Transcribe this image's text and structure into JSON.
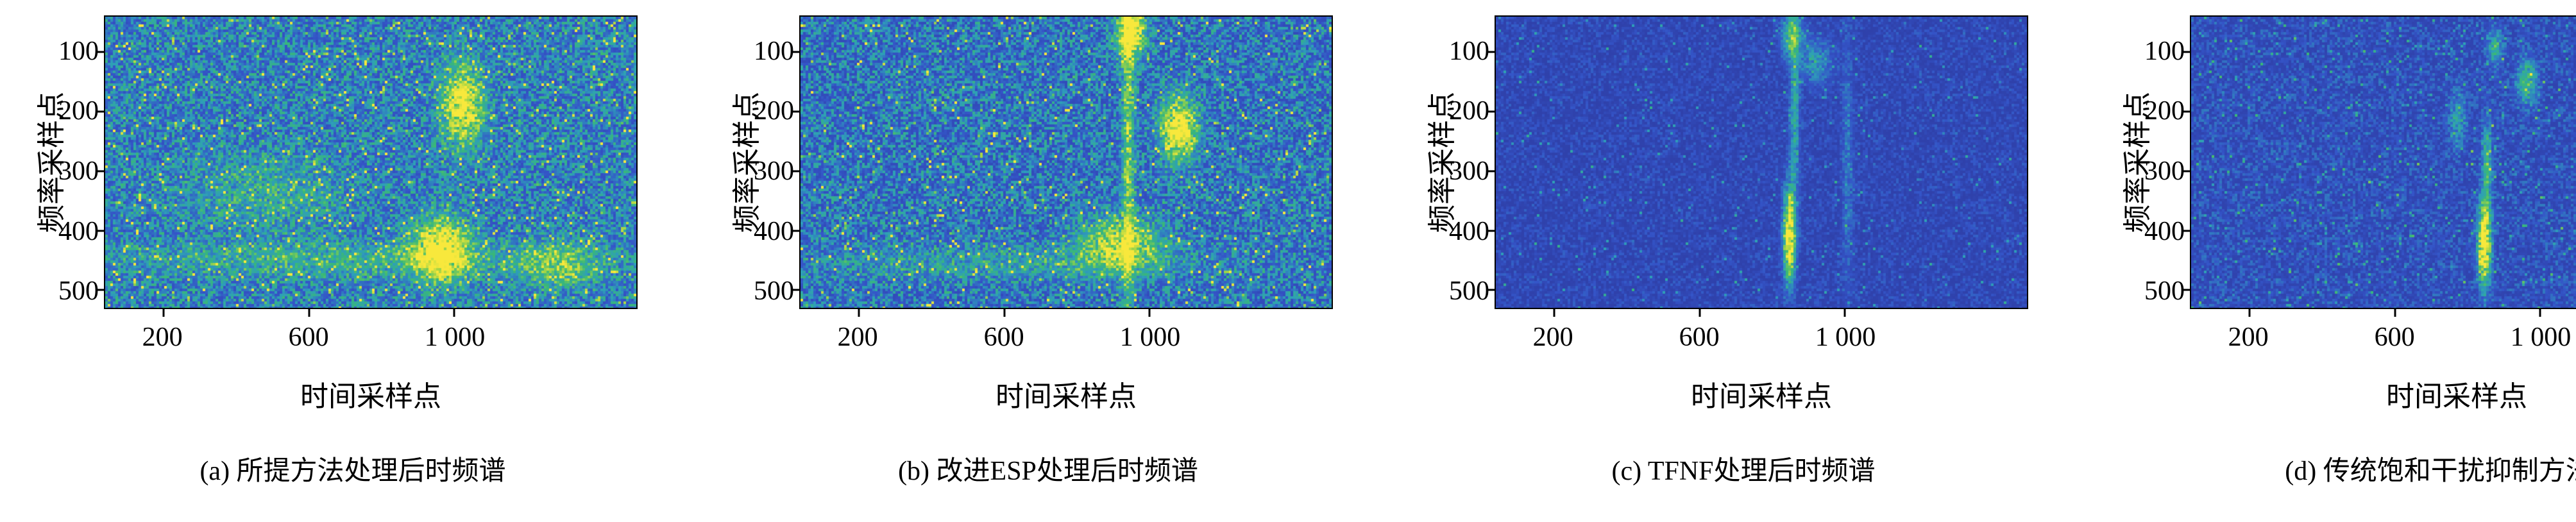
{
  "colormap": [
    "#2a2d8e",
    "#3455c8",
    "#2e9fb8",
    "#39b877",
    "#a8d645",
    "#f8e83c"
  ],
  "chart_data": [
    {
      "type": "heatmap",
      "caption": "(a) 所提方法处理后时频谱",
      "xlabel": "时间采样点",
      "ylabel": "频率采样点",
      "x_ticks": [
        200,
        600,
        1000
      ],
      "y_ticks": [
        100,
        200,
        300,
        400,
        500
      ],
      "x_tick_labels": [
        "200",
        "600",
        "1 000"
      ],
      "y_tick_labels": [
        "100",
        "200",
        "300",
        "400",
        "500"
      ],
      "x_range": [
        1,
        1500
      ],
      "y_range": [
        1,
        530
      ],
      "y_axis_direction": "reversed",
      "colormap_name": "parula",
      "render": {
        "seed": 11,
        "base": 0.17,
        "noise": 0.42,
        "pow": 1.6,
        "speckle": 0.05,
        "speckle_amp": 0.5,
        "features": [
          {
            "x": 0.67,
            "y": 0.3,
            "sx": 0.025,
            "sy": 0.09,
            "amp": 0.75
          },
          {
            "x": 0.63,
            "y": 0.8,
            "sx": 0.035,
            "sy": 0.07,
            "amp": 0.85
          },
          {
            "x": 0.45,
            "y": 0.83,
            "sx": 0.3,
            "sy": 0.04,
            "amp": 0.22
          },
          {
            "x": 0.3,
            "y": 0.6,
            "sx": 0.1,
            "sy": 0.08,
            "amp": 0.18
          },
          {
            "x": 0.85,
            "y": 0.85,
            "sx": 0.05,
            "sy": 0.05,
            "amp": 0.35
          }
        ]
      }
    },
    {
      "type": "heatmap",
      "caption": "(b) 改进ESP处理后时频谱",
      "xlabel": "时间采样点",
      "ylabel": "频率采样点",
      "x_ticks": [
        200,
        600,
        1000
      ],
      "y_ticks": [
        100,
        200,
        300,
        400,
        500
      ],
      "x_tick_labels": [
        "200",
        "600",
        "1 000"
      ],
      "y_tick_labels": [
        "100",
        "200",
        "300",
        "400",
        "500"
      ],
      "x_range": [
        1,
        1500
      ],
      "y_range": [
        1,
        530
      ],
      "y_axis_direction": "reversed",
      "colormap_name": "parula",
      "render": {
        "seed": 22,
        "base": 0.15,
        "noise": 0.4,
        "pow": 1.8,
        "speckle": 0.035,
        "speckle_amp": 0.5,
        "features": [
          {
            "x": 0.615,
            "y": 0.5,
            "sx": 0.008,
            "sy": 0.45,
            "amp": 0.45
          },
          {
            "x": 0.62,
            "y": 0.05,
            "sx": 0.018,
            "sy": 0.06,
            "amp": 0.95
          },
          {
            "x": 0.71,
            "y": 0.38,
            "sx": 0.022,
            "sy": 0.07,
            "amp": 0.9
          },
          {
            "x": 0.6,
            "y": 0.78,
            "sx": 0.05,
            "sy": 0.06,
            "amp": 0.6
          },
          {
            "x": 0.4,
            "y": 0.84,
            "sx": 0.25,
            "sy": 0.04,
            "amp": 0.18
          }
        ]
      }
    },
    {
      "type": "heatmap",
      "caption": "(c) TFNF处理后时频谱",
      "xlabel": "时间采样点",
      "ylabel": "频率采样点",
      "x_ticks": [
        200,
        600,
        1000
      ],
      "y_ticks": [
        100,
        200,
        300,
        400,
        500
      ],
      "x_tick_labels": [
        "200",
        "600",
        "1 000"
      ],
      "y_tick_labels": [
        "100",
        "200",
        "300",
        "400",
        "500"
      ],
      "x_range": [
        1,
        1500
      ],
      "y_range": [
        1,
        530
      ],
      "y_axis_direction": "reversed",
      "colormap_name": "parula",
      "render": {
        "seed": 33,
        "base": 0.1,
        "noise": 0.14,
        "pow": 2.2,
        "speckle": 0.02,
        "speckle_amp": 0.22,
        "features": [
          {
            "x": 0.55,
            "y": 0.75,
            "sx": 0.007,
            "sy": 0.1,
            "amp": 1.1
          },
          {
            "x": 0.56,
            "y": 0.35,
            "sx": 0.006,
            "sy": 0.22,
            "amp": 0.35
          },
          {
            "x": 0.555,
            "y": 0.06,
            "sx": 0.012,
            "sy": 0.05,
            "amp": 0.55
          },
          {
            "x": 0.66,
            "y": 0.5,
            "sx": 0.007,
            "sy": 0.3,
            "amp": 0.15
          },
          {
            "x": 0.6,
            "y": 0.15,
            "sx": 0.02,
            "sy": 0.05,
            "amp": 0.25
          }
        ]
      }
    },
    {
      "type": "heatmap",
      "caption": "(d) 传统饱和干扰抑制方法",
      "xlabel": "时间采样点",
      "ylabel": "频率采样点",
      "x_ticks": [
        200,
        600,
        1000
      ],
      "y_ticks": [
        100,
        200,
        300,
        400,
        500
      ],
      "x_tick_labels": [
        "200",
        "600",
        "1 000"
      ],
      "y_tick_labels": [
        "100",
        "200",
        "300",
        "400",
        "500"
      ],
      "x_range": [
        1,
        1500
      ],
      "y_range": [
        1,
        530
      ],
      "y_axis_direction": "reversed",
      "colormap_name": "parula",
      "render": {
        "seed": 44,
        "base": 0.11,
        "noise": 0.2,
        "pow": 2.0,
        "speckle": 0.03,
        "speckle_amp": 0.28,
        "features": [
          {
            "x": 0.55,
            "y": 0.77,
            "sx": 0.008,
            "sy": 0.09,
            "amp": 1.1
          },
          {
            "x": 0.555,
            "y": 0.5,
            "sx": 0.006,
            "sy": 0.1,
            "amp": 0.4
          },
          {
            "x": 0.63,
            "y": 0.22,
            "sx": 0.012,
            "sy": 0.05,
            "amp": 0.45
          },
          {
            "x": 0.57,
            "y": 0.1,
            "sx": 0.01,
            "sy": 0.04,
            "amp": 0.35
          },
          {
            "x": 0.5,
            "y": 0.35,
            "sx": 0.01,
            "sy": 0.06,
            "amp": 0.25
          }
        ]
      }
    }
  ]
}
